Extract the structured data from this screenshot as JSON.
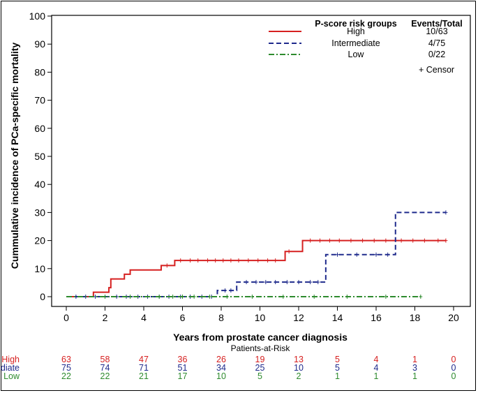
{
  "chart_data": {
    "type": "line",
    "subtype": "step",
    "title": "",
    "xlabel": "Years from prostate cancer diagnosis",
    "ylabel": "Cummulative incidence of PCa-specific mortality",
    "xlim": [
      0,
      20
    ],
    "ylim": [
      0,
      100
    ],
    "x_ticks": [
      0,
      2,
      4,
      6,
      8,
      10,
      12,
      14,
      16,
      18,
      20
    ],
    "y_ticks": [
      0,
      10,
      20,
      30,
      40,
      50,
      60,
      70,
      80,
      90,
      100
    ],
    "grid": false,
    "legend_position": "top-right",
    "legend_header": {
      "group": "P-score risk groups",
      "events": "Events/Total"
    },
    "censor_label": "+ Censor",
    "series": [
      {
        "name": "High",
        "events_total": "10/63",
        "color": "#d62020",
        "dash": "solid",
        "steps": [
          [
            0,
            0
          ],
          [
            1.4,
            1.6
          ],
          [
            2.2,
            3.2
          ],
          [
            2.3,
            6.3
          ],
          [
            3.0,
            8.0
          ],
          [
            3.3,
            9.5
          ],
          [
            4.9,
            11.1
          ],
          [
            5.6,
            12.9
          ],
          [
            11.3,
            16.1
          ],
          [
            12.2,
            20.0
          ],
          [
            19.6,
            20.0
          ]
        ],
        "censors": [
          5.2,
          5.9,
          6.4,
          6.8,
          7.3,
          7.7,
          8.1,
          8.5,
          8.9,
          9.4,
          9.9,
          10.4,
          10.8,
          11.5,
          12.6,
          13.1,
          13.6,
          14.1,
          14.7,
          15.3,
          15.9,
          16.5,
          17.3,
          17.9,
          18.5,
          19.2,
          19.6
        ]
      },
      {
        "name": "Intermediate",
        "events_total": "4/75",
        "color": "#1f2a8c",
        "dash": "dash",
        "steps": [
          [
            0,
            0
          ],
          [
            7.8,
            2.2
          ],
          [
            8.8,
            5.2
          ],
          [
            13.4,
            15.0
          ],
          [
            17.0,
            30.0
          ],
          [
            19.6,
            30.0
          ]
        ],
        "censors": [
          0.5,
          1.0,
          1.5,
          2.0,
          2.6,
          3.1,
          3.7,
          4.2,
          4.8,
          5.3,
          5.9,
          6.4,
          7.0,
          7.5,
          8.2,
          8.5,
          9.3,
          9.8,
          10.3,
          10.8,
          11.4,
          12.0,
          12.6,
          13.0,
          14.0,
          15.0,
          16.0,
          16.6,
          19.6
        ]
      },
      {
        "name": "Low",
        "events_total": "0/22",
        "color": "#2e8b2e",
        "dash": "dashdot",
        "steps": [
          [
            0,
            0
          ],
          [
            18.3,
            0
          ]
        ],
        "censors": [
          2.0,
          3.3,
          4.8,
          5.5,
          6.0,
          6.6,
          7.4,
          8.3,
          9.6,
          11.2,
          12.8,
          14.5,
          16.5,
          18.3
        ]
      }
    ],
    "risk_table": {
      "title": "Patients-at-Risk",
      "time_points": [
        0,
        2,
        4,
        6,
        8,
        10,
        12,
        14,
        16,
        18,
        20
      ],
      "rows": [
        {
          "label": "High",
          "color": "#d62020",
          "values": [
            63,
            58,
            47,
            36,
            26,
            19,
            13,
            5,
            4,
            1,
            0
          ]
        },
        {
          "label": "diate",
          "color": "#1f2a8c",
          "values": [
            75,
            74,
            71,
            51,
            34,
            25,
            10,
            5,
            4,
            3,
            0
          ]
        },
        {
          "label": "Low",
          "color": "#2e8b2e",
          "values": [
            22,
            22,
            21,
            17,
            10,
            5,
            2,
            1,
            1,
            1,
            0
          ]
        }
      ]
    }
  }
}
